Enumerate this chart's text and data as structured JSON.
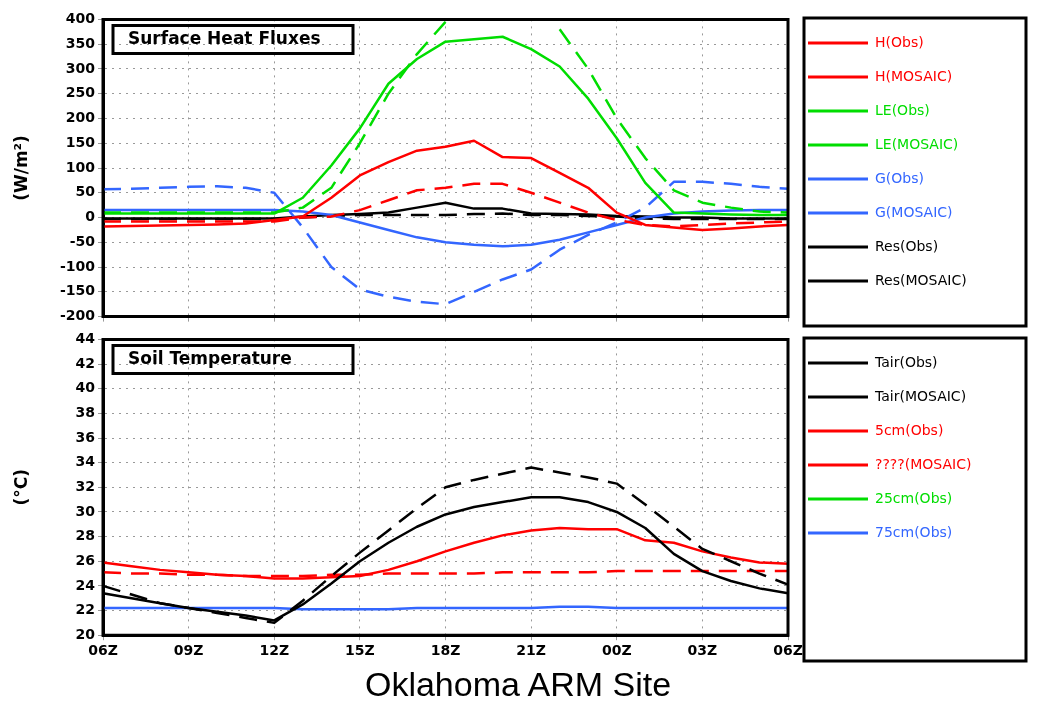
{
  "chart_data": [
    {
      "type": "line",
      "title": "Surface Heat Fluxes",
      "ylabel": "(W/m²)",
      "categories": [
        null,
        null,
        null,
        null,
        null,
        null,
        null,
        null,
        null,
        null,
        null,
        null,
        null,
        null,
        null,
        null,
        null,
        null,
        null,
        null,
        null,
        null,
        null,
        null,
        null
      ],
      "ylim": [
        -200,
        400
      ],
      "yticks": [
        -200,
        -150,
        -100,
        -50,
        0,
        50,
        100,
        150,
        200,
        250,
        300,
        350,
        400
      ],
      "tick_labels": "y",
      "grid": true,
      "legend": "right",
      "marker": "none",
      "series": [
        {
          "name": "H(Obs)",
          "color": "#ff0000",
          "line_style": "solid",
          "values": [
            -18,
            -17,
            -16,
            -15,
            -14,
            -12,
            -5,
            2,
            40,
            85,
            112,
            135,
            143,
            155,
            122,
            120,
            90,
            60,
            10,
            -15,
            -20,
            -25,
            -22,
            -18,
            -15
          ]
        },
        {
          "name": "H(MOSAIC)",
          "color": "#ff0000",
          "line_style": "dashed",
          "values": [
            -8,
            -8,
            -8,
            -8,
            -8,
            -8,
            -8,
            0,
            2,
            15,
            35,
            55,
            60,
            68,
            68,
            50,
            30,
            10,
            -5,
            -15,
            -18,
            -15,
            -12,
            -10,
            -8
          ]
        },
        {
          "name": "LE(Obs)",
          "color": "#00dd00",
          "line_style": "solid",
          "values": [
            8,
            8,
            8,
            8,
            8,
            8,
            8,
            40,
            105,
            180,
            270,
            320,
            355,
            360,
            365,
            340,
            305,
            240,
            160,
            70,
            10,
            8,
            6,
            5,
            5
          ]
        },
        {
          "name": "LE(MOSAIC)",
          "color": "#00dd00",
          "line_style": "dashed",
          "values": [
            10,
            10,
            10,
            10,
            10,
            10,
            10,
            20,
            60,
            150,
            250,
            330,
            395,
            null,
            null,
            null,
            380,
            300,
            200,
            120,
            55,
            30,
            20,
            12,
            10
          ]
        },
        {
          "name": "G(Obs)",
          "color": "#3366ff",
          "line_style": "solid",
          "values": [
            15,
            15,
            15,
            15,
            15,
            15,
            15,
            12,
            5,
            -10,
            -25,
            -40,
            -50,
            -55,
            -58,
            -55,
            -45,
            -30,
            -15,
            0,
            8,
            12,
            14,
            15,
            15
          ]
        },
        {
          "name": "G(MOSAIC)",
          "color": "#3366ff",
          "line_style": "dashed",
          "values": [
            57,
            58,
            60,
            62,
            63,
            60,
            50,
            -20,
            -100,
            -145,
            -160,
            -170,
            -175,
            -150,
            -125,
            -105,
            -65,
            -35,
            -10,
            20,
            72,
            72,
            68,
            62,
            58
          ]
        },
        {
          "name": "Res(Obs)",
          "color": "#000000",
          "line_style": "solid",
          "values": [
            -2,
            -2,
            -2,
            -2,
            -2,
            -2,
            -2,
            2,
            5,
            7,
            10,
            20,
            30,
            18,
            18,
            8,
            7,
            6,
            3,
            2,
            0,
            0,
            -2,
            -2,
            -2
          ]
        },
        {
          "name": "Res(MOSAIC)",
          "color": "#000000",
          "line_style": "dashed",
          "values": [
            -3,
            -3,
            -3,
            -3,
            -3,
            -3,
            -3,
            0,
            3,
            5,
            5,
            5,
            5,
            7,
            8,
            5,
            5,
            3,
            2,
            -2,
            -3,
            -3,
            -3,
            -3,
            -3
          ]
        }
      ]
    },
    {
      "type": "line",
      "title": "Soil Temperature",
      "ylabel": "(°C)",
      "annotations": [
        "Oklahoma ARM Site"
      ],
      "categories": [
        "06Z",
        null,
        null,
        "09Z",
        null,
        null,
        "12Z",
        null,
        null,
        "15Z",
        null,
        null,
        "18Z",
        null,
        null,
        "21Z",
        null,
        null,
        "00Z",
        null,
        null,
        "03Z",
        null,
        null,
        "06Z"
      ],
      "ylim": [
        20,
        44
      ],
      "yticks": [
        20,
        22,
        24,
        26,
        28,
        30,
        32,
        34,
        36,
        38,
        40,
        42,
        44
      ],
      "grid": true,
      "legend": "right",
      "marker": "none",
      "series": [
        {
          "name": "Tair(Obs)",
          "color": "#000000",
          "line_style": "solid",
          "values": [
            23.4,
            23,
            22.6,
            22.2,
            21.9,
            21.6,
            21.2,
            22.5,
            24.2,
            26,
            27.5,
            28.8,
            29.8,
            30.4,
            30.8,
            31.2,
            31.2,
            30.8,
            30,
            28.7,
            26.6,
            25.2,
            24.4,
            23.8,
            23.4
          ]
        },
        {
          "name": "Tair(MOSAIC)",
          "color": "#000000",
          "line_style": "dashed",
          "values": [
            24,
            23.3,
            22.6,
            22.2,
            21.8,
            21.4,
            21,
            22.8,
            24.8,
            26.7,
            28.5,
            30.3,
            32,
            32.6,
            33.1,
            33.6,
            33.2,
            32.8,
            32.3,
            30.6,
            28.8,
            27,
            26,
            25,
            24.1
          ]
        },
        {
          "name": "5cm(Obs)",
          "color": "#ff0000",
          "line_style": "solid",
          "values": [
            25.9,
            25.6,
            25.3,
            25.1,
            24.9,
            24.8,
            24.6,
            24.6,
            24.7,
            24.8,
            25.3,
            26,
            26.8,
            27.5,
            28.1,
            28.5,
            28.7,
            28.6,
            28.6,
            27.7,
            27.5,
            26.8,
            26.3,
            25.9,
            25.8
          ]
        },
        {
          "name": "????(MOSAIC)",
          "color": "#ff0000",
          "line_style": "dashed",
          "values": [
            25.1,
            25,
            25,
            24.9,
            24.9,
            24.8,
            24.8,
            24.8,
            24.9,
            24.9,
            25,
            25,
            25,
            25,
            25.1,
            25.1,
            25.1,
            25.1,
            25.2,
            25.2,
            25.2,
            25.2,
            25.2,
            25.2,
            25.2
          ]
        },
        {
          "name": "25cm(Obs)",
          "color": "#00dd00",
          "line_style": "solid",
          "values": [
            null,
            null,
            null,
            null,
            null,
            null,
            null,
            null,
            null,
            null,
            null,
            null,
            null,
            null,
            null,
            null,
            null,
            null,
            null,
            null,
            null,
            null,
            null,
            null,
            null
          ]
        },
        {
          "name": "75cm(Obs)",
          "color": "#3366ff",
          "line_style": "solid",
          "values": [
            22.2,
            22.2,
            22.2,
            22.2,
            22.2,
            22.2,
            22.2,
            22.1,
            22.1,
            22.1,
            22.1,
            22.2,
            22.2,
            22.2,
            22.2,
            22.2,
            22.3,
            22.3,
            22.2,
            22.2,
            22.2,
            22.2,
            22.2,
            22.2,
            22.2
          ]
        }
      ]
    }
  ]
}
